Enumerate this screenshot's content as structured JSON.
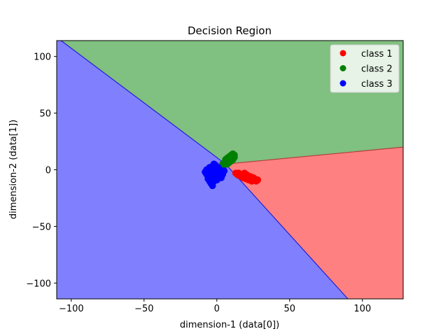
{
  "chart_data": {
    "type": "scatter",
    "title": "Decision Region",
    "xlabel": "dimension-1 (data[0])",
    "ylabel": "dimension-2 (data[1])",
    "xlim": [
      -110,
      128
    ],
    "ylim": [
      -114,
      114
    ],
    "xticks": [
      -100,
      -50,
      0,
      50,
      100
    ],
    "yticks": [
      -100,
      -50,
      0,
      50,
      100
    ],
    "xtick_labels": [
      "−100",
      "−50",
      "0",
      "50",
      "100"
    ],
    "ytick_labels": [
      "−100",
      "−50",
      "0",
      "50",
      "100"
    ],
    "grid": false,
    "legend_position": "top-right",
    "regions": [
      {
        "class": "class 1",
        "color": "#ff8080"
      },
      {
        "class": "class 2",
        "color": "#80c080"
      },
      {
        "class": "class 3",
        "color": "#8080ff"
      }
    ],
    "boundaries": {
      "blue_boundary_points": [
        [
          -107,
          114
        ],
        [
          6,
          5
        ],
        [
          90,
          -114
        ]
      ],
      "red_green_boundary_points": [
        [
          6,
          5
        ],
        [
          128,
          20
        ]
      ]
    },
    "series": [
      {
        "name": "class 1",
        "color": "#ff0000",
        "points": [
          [
            13,
            -3
          ],
          [
            14,
            -4
          ],
          [
            15,
            -3
          ],
          [
            16,
            -5
          ],
          [
            17,
            -4
          ],
          [
            18,
            -5
          ],
          [
            19,
            -6
          ],
          [
            20,
            -4
          ],
          [
            21,
            -7
          ],
          [
            22,
            -6
          ],
          [
            23,
            -8
          ],
          [
            24,
            -7
          ],
          [
            25,
            -9
          ],
          [
            26,
            -8
          ],
          [
            27,
            -10
          ],
          [
            28,
            -9
          ],
          [
            18,
            -7
          ],
          [
            20,
            -8
          ],
          [
            22,
            -9
          ],
          [
            24,
            -10
          ],
          [
            15,
            -5
          ],
          [
            17,
            -6
          ],
          [
            19,
            -3
          ],
          [
            21,
            -5
          ],
          [
            23,
            -6
          ],
          [
            25,
            -7
          ]
        ]
      },
      {
        "name": "class 2",
        "color": "#008000",
        "points": [
          [
            4,
            5
          ],
          [
            5,
            6
          ],
          [
            6,
            7
          ],
          [
            7,
            8
          ],
          [
            8,
            9
          ],
          [
            9,
            10
          ],
          [
            10,
            11
          ],
          [
            11,
            12
          ],
          [
            12,
            13
          ],
          [
            6,
            9
          ],
          [
            8,
            11
          ],
          [
            10,
            13
          ],
          [
            7,
            5
          ],
          [
            9,
            7
          ],
          [
            11,
            9
          ],
          [
            12,
            11
          ],
          [
            5,
            4
          ],
          [
            8,
            6
          ],
          [
            10,
            8
          ],
          [
            11,
            14
          ],
          [
            9,
            12
          ],
          [
            7,
            10
          ]
        ]
      },
      {
        "name": "class 3",
        "color": "#0000ff",
        "points": [
          [
            -8,
            -2
          ],
          [
            -7,
            0
          ],
          [
            -6,
            -4
          ],
          [
            -5,
            2
          ],
          [
            -4,
            -6
          ],
          [
            -3,
            -8
          ],
          [
            -3,
            3
          ],
          [
            -2,
            -1
          ],
          [
            -2,
            -10
          ],
          [
            -1,
            4
          ],
          [
            0,
            -3
          ],
          [
            1,
            -5
          ],
          [
            2,
            0
          ],
          [
            3,
            -2
          ],
          [
            4,
            -4
          ],
          [
            5,
            -1
          ],
          [
            -4,
            -12
          ],
          [
            -3,
            -14
          ],
          [
            -6,
            -8
          ],
          [
            -5,
            1
          ],
          [
            -1,
            -6
          ],
          [
            1,
            2
          ],
          [
            3,
            -7
          ],
          [
            -7,
            -4
          ],
          [
            -2,
            5
          ],
          [
            0,
            -9
          ],
          [
            -5,
            -10
          ],
          [
            2,
            -3
          ]
        ]
      }
    ]
  }
}
